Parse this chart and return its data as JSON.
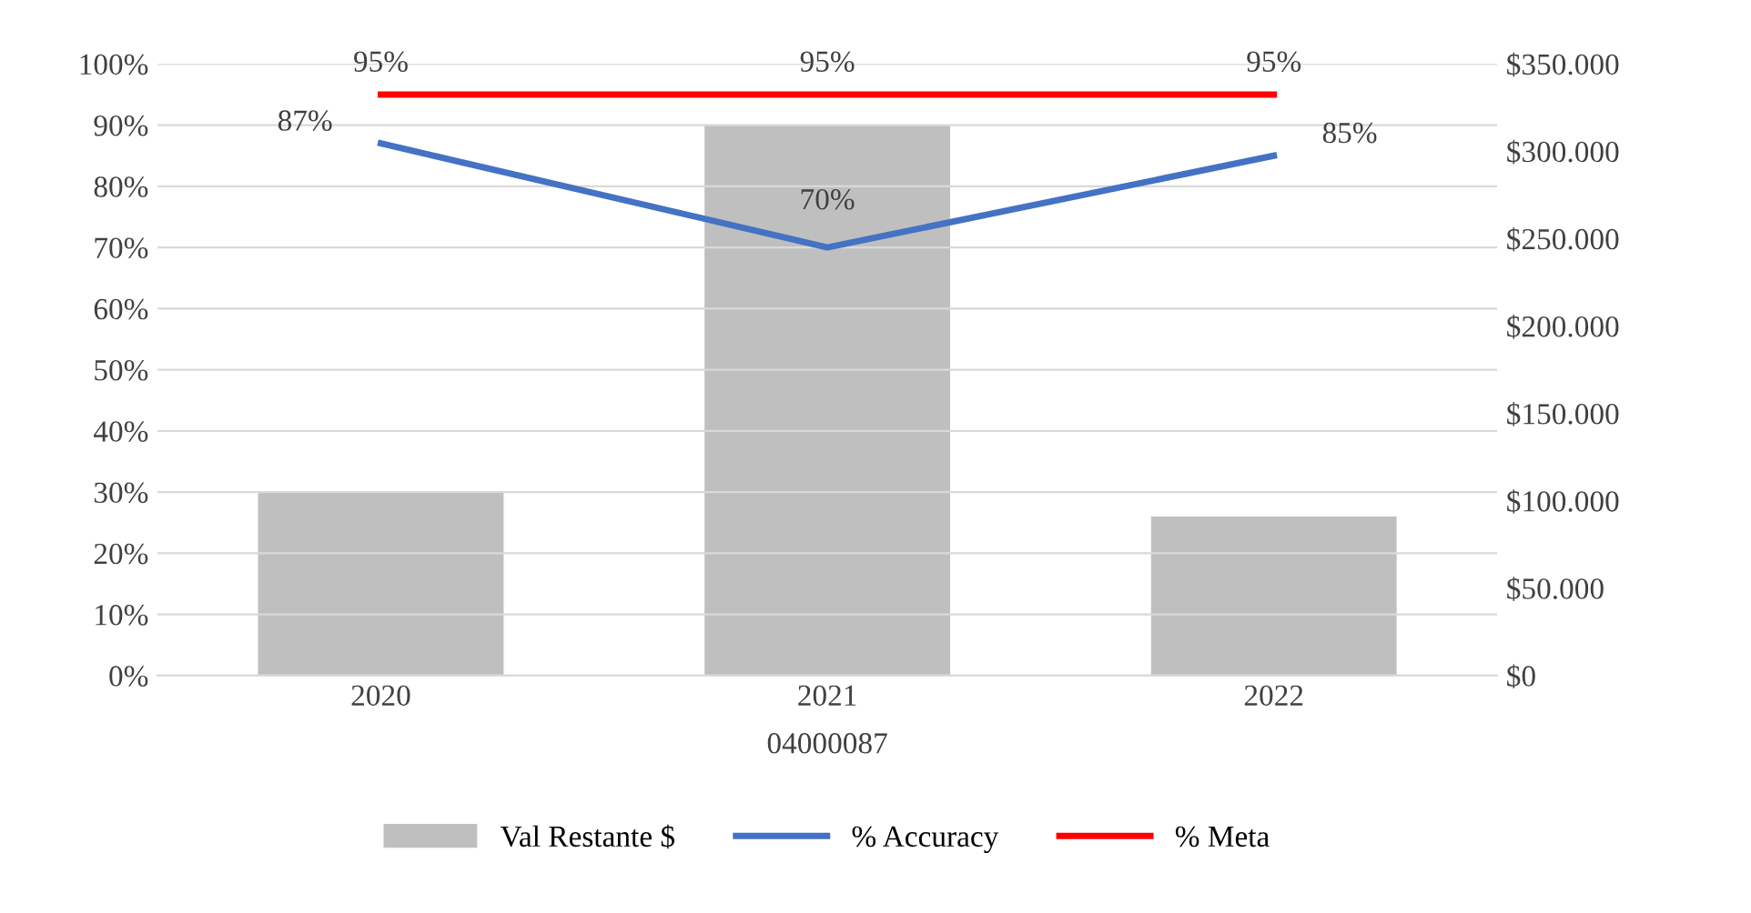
{
  "chart_data": {
    "type": "bar",
    "categories": [
      "2020",
      "2021",
      "2022"
    ],
    "xlabel": "04000087",
    "series": [
      {
        "name": "Val Restante $",
        "axis": "y2",
        "color": "#bfbfbf",
        "values": [
          105000,
          315000,
          91000
        ]
      },
      {
        "name": "% Accuracy",
        "type": "line",
        "color": "#4472c4",
        "values": [
          87,
          70,
          85
        ],
        "value_labels": [
          "87%",
          "70%",
          "85%"
        ]
      },
      {
        "name": "% Meta",
        "type": "line",
        "color": "#ff0000",
        "values": [
          95,
          95,
          95
        ],
        "value_labels": [
          "95%",
          "95%",
          "95%"
        ]
      }
    ],
    "ylim": [
      0,
      100
    ],
    "yticks": [
      {
        "value": 0,
        "label": "0%"
      },
      {
        "value": 10,
        "label": "10%"
      },
      {
        "value": 20,
        "label": "20%"
      },
      {
        "value": 30,
        "label": "30%"
      },
      {
        "value": 40,
        "label": "40%"
      },
      {
        "value": 50,
        "label": "50%"
      },
      {
        "value": 60,
        "label": "60%"
      },
      {
        "value": 70,
        "label": "70%"
      },
      {
        "value": 80,
        "label": "80%"
      },
      {
        "value": 90,
        "label": "90%"
      },
      {
        "value": 100,
        "label": "100%"
      }
    ],
    "y2lim": [
      0,
      350000
    ],
    "y2ticks": [
      {
        "value": 0,
        "label": "$0"
      },
      {
        "value": 50000,
        "label": "$50.000"
      },
      {
        "value": 100000,
        "label": "$100.000"
      },
      {
        "value": 150000,
        "label": "$150.000"
      },
      {
        "value": 200000,
        "label": "$200.000"
      },
      {
        "value": 250000,
        "label": "$250.000"
      },
      {
        "value": 300000,
        "label": "$300.000"
      },
      {
        "value": 350000,
        "label": "$350.000"
      }
    ],
    "grid": "y",
    "legend": "bottom",
    "marker": "none",
    "line_style": "solid"
  }
}
